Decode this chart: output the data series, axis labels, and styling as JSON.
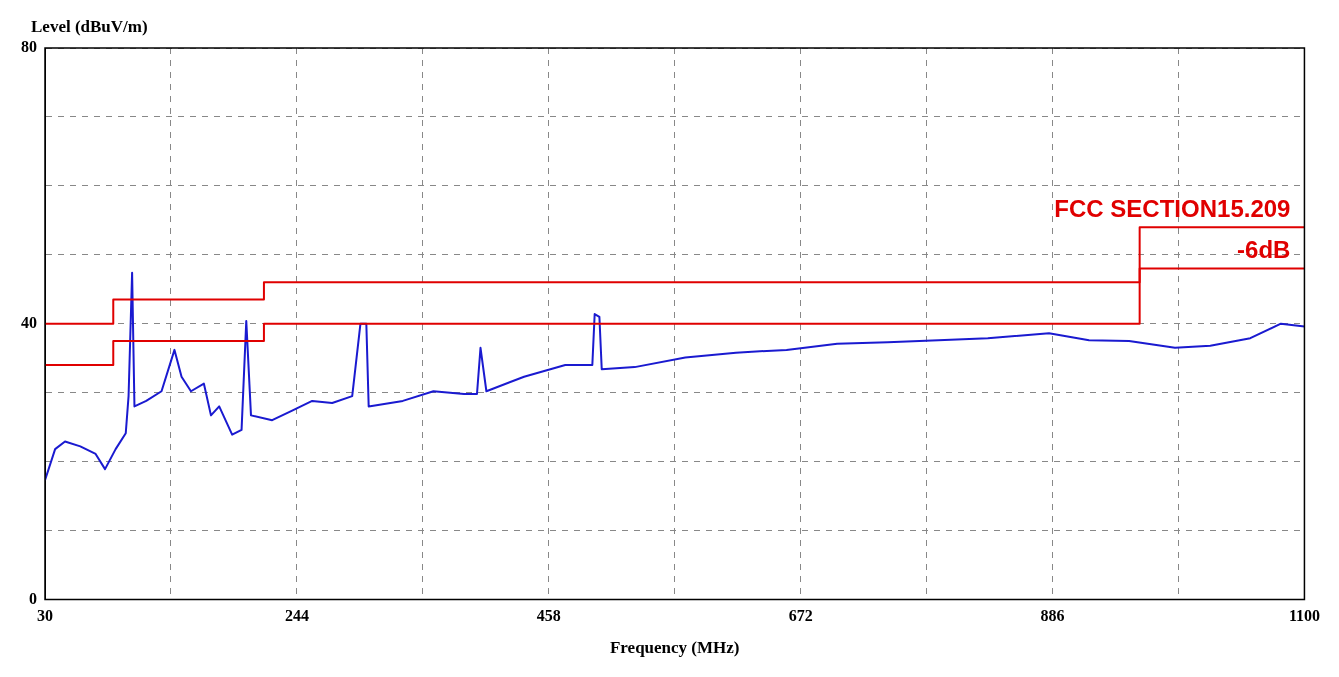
{
  "chart_data": {
    "type": "line",
    "xlabel": "Frequency (MHz)",
    "ylabel": "Level (dBuV/m)",
    "xlim": [
      30,
      1100
    ],
    "ylim": [
      0,
      80
    ],
    "xticks": [
      30,
      {
        "value": 137,
        "label": null
      },
      244,
      {
        "value": 351,
        "label": null
      },
      458,
      {
        "value": 565,
        "label": null
      },
      672,
      {
        "value": 779,
        "label": null
      },
      886,
      {
        "value": 993,
        "label": null
      },
      1100
    ],
    "yticks": [
      0,
      {
        "value": 10,
        "label": null
      },
      {
        "value": 20,
        "label": null
      },
      {
        "value": 30,
        "label": null
      },
      40,
      {
        "value": 50,
        "label": null
      },
      {
        "value": 60,
        "label": null
      },
      {
        "value": 70,
        "label": null
      },
      80
    ],
    "grid": true,
    "legend": false,
    "marker": "none",
    "series": [
      {
        "type": "line",
        "color": "#1a1ad0",
        "x": [
          30,
          38.6,
          47,
          60,
          73,
          81,
          90,
          98.6,
          101,
          104,
          106,
          116,
          129,
          140,
          146,
          154,
          165,
          171,
          178,
          189,
          197,
          201,
          205,
          223,
          240,
          257,
          274,
          291,
          298,
          303,
          305,
          334,
          360,
          386,
          397,
          400,
          405,
          437,
          472,
          495,
          497,
          501,
          503,
          531,
          574,
          617,
          660,
          703,
          746,
          789,
          831,
          883,
          917,
          951,
          990,
          1020,
          1054,
          1080,
          1100
        ],
        "values": [
          17.3,
          21.8,
          22.9,
          22.2,
          21.1,
          18.9,
          21.8,
          24.1,
          29.5,
          47.4,
          28,
          28.8,
          30.2,
          36.2,
          32.3,
          30.2,
          31.3,
          26.7,
          28,
          23.9,
          24.6,
          40.4,
          26.7,
          26,
          27.4,
          28.8,
          28.5,
          29.5,
          40,
          40,
          28,
          28.8,
          30.2,
          29.8,
          29.8,
          36.5,
          30.2,
          32.3,
          34,
          34,
          41.4,
          41,
          33.4,
          33.7,
          35.1,
          35.8,
          36.2,
          37.1,
          37.3,
          37.6,
          37.9,
          38.6,
          37.6,
          37.5,
          36.5,
          36.8,
          37.9,
          40,
          39.6
        ]
      },
      {
        "type": "step",
        "name": "FCC SECTION15.209",
        "color": "#e00000",
        "x": [
          30,
          88,
          216,
          960,
          1100
        ],
        "values": [
          40,
          43.5,
          46,
          54,
          54
        ]
      },
      {
        "type": "step",
        "name": "-6dB",
        "color": "#e00000",
        "x": [
          30,
          88,
          216,
          960,
          1100
        ],
        "values": [
          34,
          37.5,
          40,
          48,
          48
        ]
      }
    ]
  }
}
